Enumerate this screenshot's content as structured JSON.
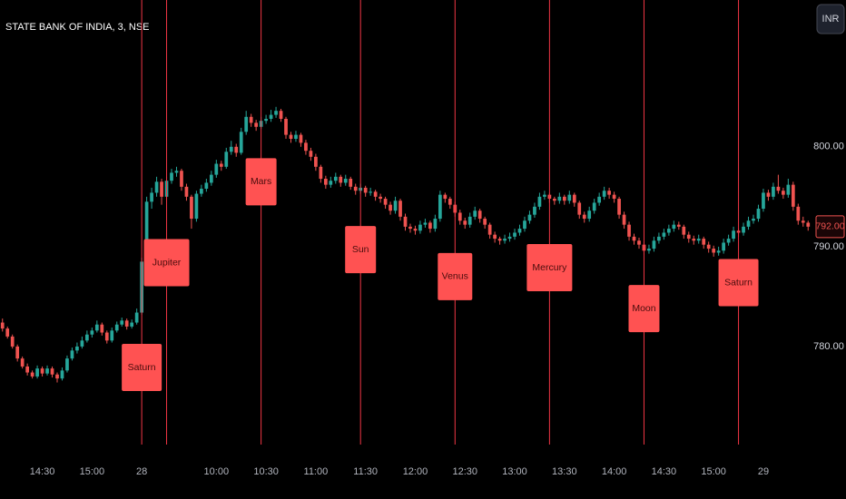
{
  "chart_data": {
    "type": "candlestick",
    "title": "STATE BANK OF INDIA, 3, NSE",
    "currency": "INR",
    "up_color": "#26a69a",
    "down_color": "#ef5350",
    "event_color": "#f23645",
    "event_box_color": "#ff5252",
    "ylim": [
      772,
      814.7
    ],
    "yticks": [
      {
        "value": 780,
        "label": "780.00"
      },
      {
        "value": 790,
        "label": "790.00"
      },
      {
        "value": 800,
        "label": "800.00"
      }
    ],
    "last_value": 792,
    "last_value_label": "792.00",
    "categories": [
      null,
      null,
      null,
      null,
      null,
      null,
      null,
      null,
      "14:30",
      null,
      null,
      null,
      null,
      null,
      null,
      null,
      null,
      null,
      "15:00",
      null,
      null,
      null,
      null,
      null,
      null,
      null,
      null,
      null,
      "28",
      null,
      null,
      null,
      null,
      null,
      null,
      null,
      null,
      null,
      null,
      null,
      null,
      null,
      null,
      "10:00",
      null,
      null,
      null,
      null,
      null,
      null,
      null,
      null,
      null,
      "10:30",
      null,
      null,
      null,
      null,
      null,
      null,
      null,
      null,
      null,
      "11:00",
      null,
      null,
      null,
      null,
      null,
      null,
      null,
      null,
      null,
      "11:30",
      null,
      null,
      null,
      null,
      null,
      null,
      null,
      null,
      null,
      "12:00",
      null,
      null,
      null,
      null,
      null,
      null,
      null,
      null,
      null,
      "12:30",
      null,
      null,
      null,
      null,
      null,
      null,
      null,
      null,
      null,
      "13:00",
      null,
      null,
      null,
      null,
      null,
      null,
      null,
      null,
      null,
      "13:30",
      null,
      null,
      null,
      null,
      null,
      null,
      null,
      null,
      null,
      "14:00",
      null,
      null,
      null,
      null,
      null,
      null,
      null,
      null,
      null,
      "14:30",
      null,
      null,
      null,
      null,
      null,
      null,
      null,
      null,
      null,
      "15:00",
      null,
      null,
      null,
      null,
      null,
      null,
      null,
      null,
      null,
      "29",
      null,
      null,
      null,
      null,
      null,
      null,
      null,
      null,
      null
    ],
    "ohlc": [
      [
        782.4,
        782.8,
        781.5,
        781.8
      ],
      [
        781.8,
        782.0,
        780.8,
        781.0
      ],
      [
        781.0,
        781.2,
        779.8,
        780.0
      ],
      [
        780.0,
        780.2,
        778.5,
        778.8
      ],
      [
        778.8,
        779.0,
        777.8,
        778.0
      ],
      [
        778.0,
        778.3,
        777.1,
        777.4
      ],
      [
        777.4,
        777.6,
        776.8,
        777.0
      ],
      [
        777.0,
        778.1,
        776.8,
        777.8
      ],
      [
        777.8,
        778.0,
        777.0,
        777.3
      ],
      [
        777.3,
        778.1,
        777.1,
        777.8
      ],
      [
        777.8,
        778.0,
        776.9,
        777.2
      ],
      [
        777.2,
        777.4,
        776.4,
        776.8
      ],
      [
        776.8,
        777.9,
        776.6,
        777.6
      ],
      [
        777.6,
        779.1,
        777.4,
        778.8
      ],
      [
        778.8,
        779.9,
        778.6,
        779.6
      ],
      [
        779.6,
        780.4,
        779.3,
        780.0
      ],
      [
        780.0,
        781.0,
        779.8,
        780.6
      ],
      [
        780.6,
        781.6,
        780.4,
        781.2
      ],
      [
        781.2,
        781.9,
        780.9,
        781.6
      ],
      [
        781.6,
        782.6,
        781.4,
        782.2
      ],
      [
        782.2,
        782.4,
        781.1,
        781.4
      ],
      [
        781.4,
        781.6,
        780.3,
        780.6
      ],
      [
        780.6,
        781.9,
        780.4,
        781.6
      ],
      [
        781.6,
        782.5,
        781.4,
        782.2
      ],
      [
        782.2,
        782.9,
        782.0,
        782.6
      ],
      [
        782.6,
        782.8,
        781.7,
        782.0
      ],
      [
        782.0,
        782.7,
        781.8,
        782.4
      ],
      [
        782.4,
        783.8,
        782.2,
        783.4
      ],
      [
        783.4,
        788.9,
        783.2,
        788.5
      ],
      [
        788.5,
        795.0,
        788.2,
        794.5
      ],
      [
        794.5,
        795.9,
        793.8,
        795.4
      ],
      [
        795.4,
        797.0,
        795.0,
        796.5
      ],
      [
        796.5,
        796.8,
        794.2,
        795.0
      ],
      [
        795.0,
        797.0,
        794.8,
        796.6
      ],
      [
        796.6,
        797.8,
        796.3,
        797.4
      ],
      [
        797.4,
        798.0,
        797.0,
        797.6
      ],
      [
        797.6,
        797.8,
        795.6,
        796.0
      ],
      [
        796.0,
        796.3,
        794.6,
        795.0
      ],
      [
        795.0,
        795.2,
        791.8,
        792.8
      ],
      [
        792.8,
        795.6,
        792.5,
        795.3
      ],
      [
        795.3,
        796.2,
        795.0,
        795.8
      ],
      [
        795.8,
        796.8,
        795.5,
        796.4
      ],
      [
        796.4,
        797.6,
        796.1,
        797.2
      ],
      [
        797.2,
        798.7,
        796.9,
        798.3
      ],
      [
        798.3,
        798.6,
        797.6,
        798.0
      ],
      [
        798.0,
        799.9,
        797.8,
        799.5
      ],
      [
        799.5,
        800.6,
        799.2,
        800.0
      ],
      [
        800.0,
        800.3,
        799.0,
        799.4
      ],
      [
        799.4,
        801.9,
        799.2,
        801.5
      ],
      [
        801.5,
        803.6,
        801.2,
        803.0
      ],
      [
        803.0,
        803.3,
        802.0,
        802.4
      ],
      [
        802.4,
        802.7,
        801.6,
        802.0
      ],
      [
        802.0,
        803.0,
        801.8,
        802.6
      ],
      [
        802.6,
        803.2,
        802.3,
        802.8
      ],
      [
        802.8,
        803.7,
        802.5,
        803.2
      ],
      [
        803.2,
        804.0,
        802.9,
        803.6
      ],
      [
        803.6,
        803.8,
        802.5,
        802.8
      ],
      [
        802.8,
        803.0,
        800.8,
        801.2
      ],
      [
        801.2,
        801.5,
        800.4,
        800.8
      ],
      [
        800.8,
        801.6,
        800.5,
        801.2
      ],
      [
        801.2,
        801.4,
        800.0,
        800.4
      ],
      [
        800.4,
        800.7,
        799.2,
        799.6
      ],
      [
        799.6,
        799.9,
        798.6,
        799.0
      ],
      [
        799.0,
        799.3,
        797.6,
        798.0
      ],
      [
        798.0,
        798.2,
        796.4,
        796.8
      ],
      [
        796.8,
        797.1,
        795.8,
        796.2
      ],
      [
        796.2,
        797.0,
        795.9,
        796.6
      ],
      [
        796.6,
        797.4,
        796.3,
        797.0
      ],
      [
        797.0,
        797.2,
        796.0,
        796.4
      ],
      [
        796.4,
        797.2,
        796.1,
        796.8
      ],
      [
        796.8,
        797.0,
        795.7,
        796.0
      ],
      [
        796.0,
        796.3,
        795.2,
        795.6
      ],
      [
        795.6,
        796.3,
        795.3,
        795.9
      ],
      [
        795.9,
        796.1,
        795.0,
        795.4
      ],
      [
        795.4,
        795.9,
        795.1,
        795.5
      ],
      [
        795.5,
        795.7,
        794.6,
        795.0
      ],
      [
        795.0,
        795.3,
        794.4,
        794.8
      ],
      [
        794.8,
        795.0,
        793.8,
        794.2
      ],
      [
        794.2,
        794.5,
        793.2,
        793.6
      ],
      [
        793.6,
        795.0,
        793.3,
        794.6
      ],
      [
        794.6,
        794.8,
        792.6,
        793.0
      ],
      [
        793.0,
        793.3,
        791.6,
        792.0
      ],
      [
        792.0,
        792.3,
        791.4,
        791.8
      ],
      [
        791.8,
        792.1,
        791.2,
        791.6
      ],
      [
        791.6,
        792.6,
        791.3,
        792.2
      ],
      [
        792.2,
        792.8,
        791.9,
        792.4
      ],
      [
        792.4,
        792.6,
        791.4,
        791.8
      ],
      [
        791.8,
        793.2,
        791.5,
        792.8
      ],
      [
        792.8,
        795.6,
        792.5,
        795.2
      ],
      [
        795.2,
        795.4,
        794.4,
        794.8
      ],
      [
        794.8,
        795.0,
        793.8,
        794.2
      ],
      [
        794.2,
        794.5,
        793.0,
        793.4
      ],
      [
        793.4,
        793.7,
        792.2,
        792.6
      ],
      [
        792.6,
        792.9,
        791.8,
        792.2
      ],
      [
        792.2,
        793.4,
        791.9,
        793.0
      ],
      [
        793.0,
        794.0,
        792.7,
        793.6
      ],
      [
        793.6,
        793.8,
        792.4,
        792.8
      ],
      [
        792.8,
        793.0,
        791.8,
        792.2
      ],
      [
        792.2,
        792.4,
        790.8,
        791.2
      ],
      [
        791.2,
        791.5,
        790.4,
        790.8
      ],
      [
        790.8,
        791.0,
        790.2,
        790.6
      ],
      [
        790.6,
        791.2,
        790.3,
        790.8
      ],
      [
        790.8,
        791.4,
        790.5,
        791.0
      ],
      [
        791.0,
        791.8,
        790.7,
        791.4
      ],
      [
        791.4,
        792.2,
        791.1,
        791.8
      ],
      [
        791.8,
        793.0,
        791.5,
        792.6
      ],
      [
        792.6,
        793.6,
        792.3,
        793.2
      ],
      [
        793.2,
        794.4,
        792.9,
        794.0
      ],
      [
        794.0,
        795.4,
        793.7,
        795.0
      ],
      [
        795.0,
        795.6,
        794.7,
        795.2
      ],
      [
        795.2,
        795.4,
        794.4,
        794.8
      ],
      [
        794.8,
        795.0,
        794.2,
        794.6
      ],
      [
        794.6,
        795.4,
        794.3,
        795.0
      ],
      [
        795.0,
        795.2,
        794.2,
        794.6
      ],
      [
        794.6,
        795.6,
        794.3,
        795.2
      ],
      [
        795.2,
        795.4,
        794.0,
        794.4
      ],
      [
        794.4,
        794.6,
        792.8,
        793.2
      ],
      [
        793.2,
        793.5,
        792.4,
        792.8
      ],
      [
        792.8,
        794.0,
        792.5,
        793.6
      ],
      [
        793.6,
        794.8,
        793.3,
        794.4
      ],
      [
        794.4,
        795.4,
        794.1,
        795.0
      ],
      [
        795.0,
        796.0,
        794.7,
        795.6
      ],
      [
        795.6,
        795.9,
        794.8,
        795.2
      ],
      [
        795.2,
        795.5,
        794.4,
        794.8
      ],
      [
        794.8,
        795.0,
        792.8,
        793.2
      ],
      [
        793.2,
        793.5,
        791.8,
        792.2
      ],
      [
        792.2,
        792.5,
        790.6,
        791.0
      ],
      [
        791.0,
        791.3,
        790.2,
        790.6
      ],
      [
        790.6,
        790.9,
        789.8,
        790.2
      ],
      [
        790.2,
        790.5,
        789.2,
        789.6
      ],
      [
        789.6,
        790.2,
        789.3,
        789.8
      ],
      [
        789.8,
        791.0,
        789.5,
        790.6
      ],
      [
        790.6,
        791.4,
        790.3,
        791.0
      ],
      [
        791.0,
        791.8,
        790.7,
        791.4
      ],
      [
        791.4,
        792.2,
        791.1,
        791.8
      ],
      [
        791.8,
        792.6,
        791.5,
        792.2
      ],
      [
        792.2,
        792.5,
        791.7,
        792.0
      ],
      [
        792.0,
        792.2,
        790.8,
        791.2
      ],
      [
        791.2,
        791.5,
        790.4,
        790.8
      ],
      [
        790.8,
        791.1,
        790.2,
        790.6
      ],
      [
        790.6,
        791.2,
        790.3,
        790.8
      ],
      [
        790.8,
        791.0,
        789.8,
        790.2
      ],
      [
        790.2,
        790.5,
        789.4,
        789.8
      ],
      [
        789.8,
        790.1,
        789.0,
        789.4
      ],
      [
        789.4,
        790.0,
        789.1,
        789.6
      ],
      [
        789.6,
        790.8,
        789.3,
        790.4
      ],
      [
        790.4,
        791.2,
        790.1,
        790.8
      ],
      [
        790.8,
        792.0,
        790.5,
        791.6
      ],
      [
        791.6,
        791.8,
        791.0,
        791.4
      ],
      [
        791.4,
        792.4,
        791.1,
        792.0
      ],
      [
        792.0,
        793.0,
        791.7,
        792.6
      ],
      [
        792.6,
        793.2,
        792.3,
        792.8
      ],
      [
        792.8,
        794.2,
        792.5,
        793.8
      ],
      [
        793.8,
        795.8,
        793.5,
        795.4
      ],
      [
        795.4,
        795.7,
        794.6,
        795.0
      ],
      [
        795.0,
        796.4,
        794.7,
        796.0
      ],
      [
        796.0,
        797.2,
        795.3,
        795.6
      ],
      [
        795.6,
        795.9,
        794.8,
        795.2
      ],
      [
        795.2,
        796.8,
        794.9,
        796.2
      ],
      [
        796.2,
        796.5,
        793.6,
        794.0
      ],
      [
        794.0,
        794.3,
        792.2,
        792.6
      ],
      [
        792.6,
        793.0,
        792.0,
        792.4
      ],
      [
        792.4,
        792.6,
        791.6,
        792.0
      ]
    ],
    "events": [
      {
        "label": "Saturn",
        "index": 28,
        "price": 777.9
      },
      {
        "label": "Jupiter",
        "index": 33,
        "price": 788.4
      },
      {
        "label": "Mars",
        "index": 52,
        "price": 796.5
      },
      {
        "label": "Sun",
        "index": 72,
        "price": 789.7
      },
      {
        "label": "Venus",
        "index": 91,
        "price": 787.0
      },
      {
        "label": "Mercury",
        "index": 110,
        "price": 787.9
      },
      {
        "label": "Moon",
        "index": 129,
        "price": 783.8
      },
      {
        "label": "Saturn",
        "index": 148,
        "price": 786.4
      }
    ]
  }
}
